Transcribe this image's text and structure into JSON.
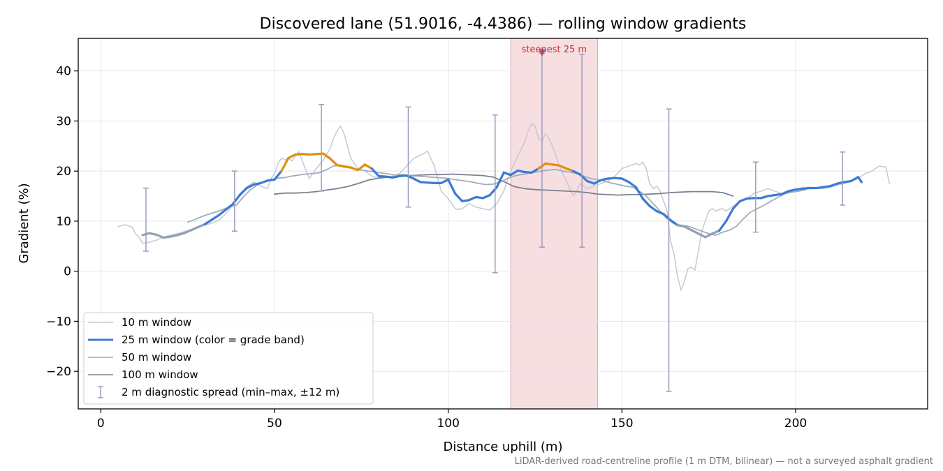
{
  "chart_data": {
    "type": "line",
    "title": "Discovered lane (51.9016, -4.4386) — rolling window gradients",
    "xlabel": "Distance uphill (m)",
    "ylabel": "Gradient (%)",
    "xlim": [
      -6.5,
      238
    ],
    "ylim": [
      -27.5,
      46.5
    ],
    "xticks": [
      0,
      50,
      100,
      150,
      200
    ],
    "yticks": [
      -20,
      -10,
      0,
      10,
      20,
      30,
      40
    ],
    "xtick_labels": [
      "0",
      "50",
      "100",
      "150",
      "200"
    ],
    "ytick_labels": [
      "−20",
      "−10",
      "0",
      "10",
      "20",
      "30",
      "40"
    ],
    "grid": true,
    "legend_position": "lower-left",
    "footnote": "LiDAR-derived road-centreline profile (1 m DTM, bilinear) — not a surveyed asphalt gradient",
    "highlight": {
      "x_start": 118,
      "x_end": 143,
      "label": "steepest 25 m",
      "marker_x": 127,
      "marker_y": 43.5,
      "color": "#f3d0d4"
    },
    "series": [
      {
        "name": "10 m window",
        "color": "#c4c9d4",
        "x": [
          5,
          7,
          9,
          10,
          11,
          12,
          14,
          16,
          18,
          20,
          22,
          24,
          26,
          28,
          30,
          32,
          34,
          36,
          38,
          40,
          42,
          44,
          46,
          48,
          49,
          50,
          51,
          52,
          53,
          54,
          55,
          56,
          57,
          58,
          60,
          62,
          64,
          66,
          67,
          68,
          69,
          70,
          72,
          74,
          76,
          78,
          80,
          82,
          84,
          86,
          88,
          90,
          92,
          93,
          94,
          95,
          96,
          98,
          100,
          102,
          103,
          104,
          106,
          108,
          110,
          112,
          114,
          116,
          118,
          120,
          122,
          123,
          124,
          125,
          126,
          127,
          128,
          129,
          130,
          131,
          132,
          133,
          134,
          135,
          136,
          137,
          138,
          139,
          140,
          142,
          144,
          146,
          148,
          150,
          152,
          154,
          155,
          156,
          157,
          158,
          159,
          160,
          161,
          162,
          163,
          164,
          165,
          166,
          167,
          168,
          169,
          170,
          171,
          172,
          173,
          174,
          175,
          176,
          177,
          178,
          179,
          180,
          182,
          184,
          186,
          188,
          190,
          192,
          194,
          196,
          198,
          200,
          202,
          204,
          206,
          208,
          210,
          212,
          214,
          216,
          218,
          220,
          222,
          224,
          226,
          227
        ],
        "values": [
          8.9,
          9.3,
          8.8,
          7.5,
          6.8,
          5.6,
          5.8,
          6.2,
          6.8,
          7.2,
          7.5,
          7.9,
          8.3,
          8.8,
          9.2,
          9.6,
          10.2,
          11.5,
          13.2,
          15.5,
          16.8,
          17.8,
          17.0,
          16.5,
          18.5,
          19.5,
          21.5,
          22.6,
          22.2,
          22.6,
          22.0,
          23.0,
          23.9,
          22.0,
          18.5,
          20.5,
          22.2,
          24.5,
          26.5,
          28.0,
          29.0,
          27.5,
          22.5,
          20.5,
          20.0,
          19.0,
          18.5,
          18.8,
          19.0,
          19.5,
          21.0,
          22.5,
          23.2,
          23.5,
          24.0,
          22.5,
          21.0,
          16.0,
          14.5,
          12.5,
          12.3,
          12.5,
          13.5,
          12.8,
          12.5,
          12.2,
          13.5,
          16.0,
          20.0,
          23.0,
          25.8,
          28.0,
          29.5,
          29.0,
          26.5,
          26.0,
          27.5,
          26.5,
          25.0,
          23.0,
          21.0,
          19.5,
          18.0,
          16.5,
          15.0,
          16.0,
          17.5,
          17.0,
          16.5,
          17.0,
          17.5,
          18.0,
          19.0,
          20.5,
          21.0,
          21.5,
          21.2,
          21.8,
          20.5,
          17.5,
          16.5,
          17.0,
          16.0,
          14.0,
          12.0,
          6.0,
          3.5,
          -1.0,
          -3.8,
          -2.0,
          0.5,
          0.8,
          0.2,
          4.0,
          8.0,
          10.0,
          12.0,
          12.5,
          12.0,
          12.3,
          12.5,
          12.0,
          13.0,
          14.0,
          14.5,
          15.5,
          16.0,
          16.5,
          16.0,
          15.5,
          15.8,
          16.0,
          16.5,
          16.8,
          16.5,
          16.5,
          16.8,
          17.2,
          17.5,
          18.0,
          18.5,
          19.5,
          20.0,
          21.0,
          20.8,
          17.5
        ]
      },
      {
        "name": "25 m window (color = grade band)",
        "color": "#3a7bd5",
        "band_color": "#e0900a",
        "band_threshold": 20,
        "x": [
          12,
          14,
          16,
          18,
          20,
          22,
          24,
          26,
          28,
          30,
          32,
          34,
          36,
          38,
          40,
          42,
          44,
          46,
          48,
          50,
          52,
          54,
          56,
          58,
          60,
          62,
          64,
          66,
          68,
          70,
          72,
          74,
          76,
          78,
          80,
          82,
          84,
          86,
          88,
          90,
          92,
          94,
          96,
          98,
          100,
          102,
          104,
          106,
          108,
          110,
          112,
          114,
          116,
          118,
          120,
          122,
          124,
          126,
          128,
          130,
          132,
          134,
          136,
          138,
          140,
          142,
          144,
          146,
          148,
          150,
          152,
          154,
          156,
          158,
          160,
          162,
          164,
          166,
          168,
          170,
          172,
          174,
          176,
          178,
          180,
          182,
          184,
          186,
          188,
          190,
          192,
          194,
          196,
          198,
          200,
          202,
          204,
          206,
          208,
          210,
          212,
          214,
          216,
          218,
          219
        ],
        "values": [
          7.2,
          7.6,
          7.3,
          6.7,
          6.9,
          7.2,
          7.6,
          8.2,
          8.8,
          9.4,
          10.3,
          11.2,
          12.3,
          13.4,
          15.2,
          16.6,
          17.3,
          17.6,
          18.1,
          18.3,
          20.0,
          22.6,
          23.3,
          23.4,
          23.3,
          23.4,
          23.5,
          22.5,
          21.2,
          20.9,
          20.7,
          20.2,
          21.3,
          20.5,
          19.0,
          18.9,
          18.7,
          19.0,
          19.1,
          18.5,
          17.8,
          17.7,
          17.6,
          17.6,
          18.3,
          15.5,
          14.0,
          14.2,
          14.8,
          14.6,
          15.2,
          16.8,
          19.7,
          19.2,
          20.1,
          19.8,
          19.7,
          20.5,
          21.5,
          21.3,
          21.1,
          20.5,
          20.0,
          19.3,
          18.0,
          17.5,
          18.2,
          18.5,
          18.6,
          18.5,
          17.8,
          16.8,
          14.5,
          13.0,
          12.0,
          11.4,
          10.2,
          9.2,
          8.9,
          8.2,
          7.5,
          6.8,
          7.5,
          8.1,
          10.0,
          12.5,
          14.0,
          14.5,
          14.6,
          14.6,
          15.0,
          15.2,
          15.4,
          16.0,
          16.3,
          16.5,
          16.6,
          16.6,
          16.8,
          17.0,
          17.5,
          17.8,
          18.0,
          18.8,
          17.8
        ]
      },
      {
        "name": "50 m window",
        "color": "#a3abbc",
        "x": [
          25,
          27,
          29,
          31,
          33,
          35,
          37,
          39,
          41,
          43,
          45,
          47,
          49,
          51,
          53,
          55,
          57,
          59,
          61,
          63,
          65,
          67,
          69,
          71,
          73,
          75,
          77,
          79,
          81,
          83,
          85,
          87,
          89,
          91,
          93,
          95,
          97,
          99,
          101,
          103,
          105,
          107,
          109,
          111,
          113,
          115,
          117,
          119,
          121,
          123,
          125,
          127,
          129,
          131,
          133,
          135,
          137,
          139,
          141,
          143,
          145,
          147,
          149,
          151,
          153,
          155,
          157,
          159,
          161,
          163,
          165,
          167,
          169,
          171,
          173,
          175,
          177,
          179,
          181,
          183,
          185,
          187,
          189,
          191,
          193,
          195,
          197,
          199,
          201,
          203
        ],
        "values": [
          9.8,
          10.3,
          10.9,
          11.4,
          11.8,
          12.3,
          12.8,
          13.2,
          14.8,
          16.2,
          17.2,
          17.8,
          18.3,
          18.6,
          18.7,
          19.0,
          19.2,
          19.4,
          19.5,
          19.7,
          20.3,
          21.0,
          21.2,
          20.9,
          20.5,
          20.2,
          20.0,
          19.8,
          19.6,
          19.4,
          19.2,
          19.3,
          19.0,
          19.0,
          18.9,
          18.8,
          18.7,
          18.6,
          18.4,
          18.2,
          18.0,
          17.8,
          17.5,
          17.3,
          17.4,
          17.8,
          18.5,
          19.0,
          19.3,
          19.5,
          19.8,
          20.0,
          20.2,
          20.3,
          20.0,
          19.8,
          19.5,
          19.0,
          18.5,
          18.3,
          18.0,
          17.6,
          17.3,
          17.0,
          16.8,
          16.0,
          15.0,
          13.5,
          12.0,
          10.5,
          9.5,
          9.2,
          9.0,
          8.5,
          8.0,
          7.5,
          7.2,
          7.8,
          8.2,
          9.0,
          10.5,
          11.8,
          12.5,
          13.2,
          14.0,
          14.8,
          15.5,
          15.8,
          16.0,
          16.3
        ]
      },
      {
        "name": "100 m window",
        "color": "#7b8292",
        "x": [
          50,
          53,
          56,
          59,
          62,
          65,
          68,
          71,
          74,
          77,
          80,
          83,
          86,
          89,
          92,
          95,
          98,
          101,
          104,
          107,
          110,
          113,
          116,
          119,
          122,
          125,
          128,
          131,
          134,
          137,
          140,
          143,
          146,
          149,
          152,
          155,
          158,
          161,
          164,
          167,
          170,
          173,
          176,
          179,
          182
        ],
        "values": [
          15.4,
          15.6,
          15.6,
          15.7,
          15.9,
          16.2,
          16.5,
          16.9,
          17.5,
          18.2,
          18.6,
          18.8,
          18.9,
          19.1,
          19.2,
          19.3,
          19.3,
          19.4,
          19.3,
          19.2,
          19.1,
          18.8,
          17.9,
          16.9,
          16.5,
          16.3,
          16.2,
          16.1,
          16.0,
          15.9,
          15.7,
          15.4,
          15.3,
          15.2,
          15.3,
          15.3,
          15.4,
          15.5,
          15.7,
          15.8,
          15.9,
          15.9,
          15.9,
          15.7,
          15.0
        ]
      },
      {
        "name": "2 m diagnostic spread (min–max, ±12 m)",
        "type": "errorbar",
        "color": "#9e9cbd",
        "x": [
          13,
          38.5,
          63.5,
          88.5,
          113.5,
          127,
          138.5,
          163.5,
          188.5,
          213.5
        ],
        "min": [
          4.0,
          8.0,
          16.0,
          12.8,
          -0.3,
          4.8,
          4.8,
          -24.0,
          7.8,
          13.2
        ],
        "max": [
          16.6,
          20.0,
          33.3,
          32.8,
          31.2,
          43.5,
          43.3,
          32.4,
          21.8,
          23.8
        ]
      }
    ]
  }
}
